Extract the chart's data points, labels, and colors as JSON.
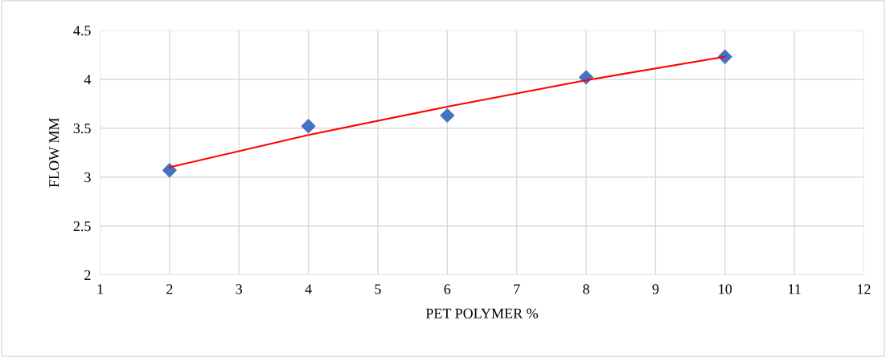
{
  "chart_data": {
    "type": "scatter",
    "xlabel": "PET POLYMER %",
    "ylabel": "FLOW MM",
    "xlim": [
      1,
      12
    ],
    "xticks": [
      1,
      2,
      3,
      4,
      5,
      6,
      7,
      8,
      9,
      10,
      11,
      12
    ],
    "ylim": [
      2,
      4.5
    ],
    "yticks": [
      2,
      2.5,
      3,
      3.5,
      4,
      4.5
    ],
    "grid": true,
    "marker": "diamond",
    "series": [
      {
        "color": "#4472c4",
        "x": [
          2,
          4,
          6,
          8,
          10
        ],
        "values": [
          3.07,
          3.52,
          3.63,
          4.02,
          4.23
        ]
      },
      {
        "type": "line",
        "color": "#ff0000",
        "marker": "none",
        "line_style": "solid",
        "x": [
          2,
          4,
          6,
          8,
          10
        ],
        "values": [
          3.1,
          3.43,
          3.72,
          3.99,
          4.23
        ]
      }
    ]
  }
}
